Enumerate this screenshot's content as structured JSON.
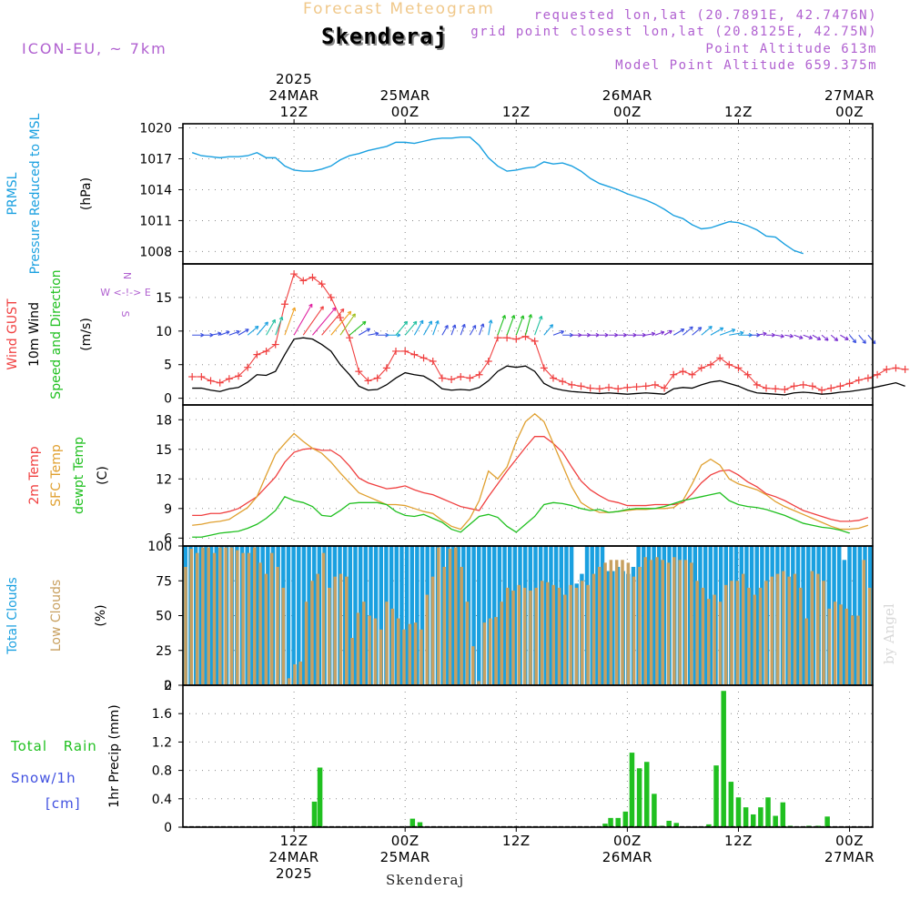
{
  "header": {
    "subtitle": "Forecast Meteogram",
    "station": "Skenderaj",
    "model": "ICON-EU, ~ 7km",
    "requested": "requested lon,lat (20.7891E, 42.7476N)",
    "closest": "grid point closest lon,lat (20.8125E, 42.75N)",
    "point_alt": "Point Altitude 613m",
    "model_alt": "Model Point Altitude 659.375m"
  },
  "footer": {
    "station": "Skenderaj",
    "credit": "by Angel"
  },
  "time_axis": {
    "top_labels": [
      {
        "t": 12,
        "lines": [
          "2025",
          "24MAR",
          "12Z"
        ]
      },
      {
        "t": 24,
        "lines": [
          "25MAR",
          "00Z"
        ]
      },
      {
        "t": 36,
        "lines": [
          "12Z"
        ]
      },
      {
        "t": 48,
        "lines": [
          "26MAR",
          "00Z"
        ]
      },
      {
        "t": 60,
        "lines": [
          "12Z"
        ]
      },
      {
        "t": 72,
        "lines": [
          "27MAR",
          "00Z"
        ]
      }
    ],
    "bottom_labels": [
      {
        "t": 12,
        "lines": [
          "12Z",
          "24MAR",
          "2025"
        ]
      },
      {
        "t": 24,
        "lines": [
          "00Z",
          "25MAR"
        ]
      },
      {
        "t": 36,
        "lines": [
          "12Z"
        ]
      },
      {
        "t": 48,
        "lines": [
          "00Z",
          "26MAR"
        ]
      },
      {
        "t": 60,
        "lines": [
          "12Z"
        ]
      },
      {
        "t": 72,
        "lines": [
          "00Z",
          "27MAR"
        ]
      }
    ]
  },
  "colors": {
    "pressure": "#1aa0e0",
    "gust": "#f04040",
    "wind": "#000000",
    "t2m": "#f04040",
    "sfc": "#e0a030",
    "dew": "#20c020",
    "total_clouds": "#1aa0e0",
    "low_clouds": "#c8a060",
    "rain": "#20c020",
    "snow": "#4050e0"
  },
  "chart_data": [
    {
      "type": "line",
      "ylabels": [
        "PRMSL",
        "Pressure Reduced to MSL",
        "(hPa)"
      ],
      "ylim": [
        1006.8,
        1020.4
      ],
      "yticks": [
        1008,
        1011,
        1014,
        1017,
        1020
      ],
      "series": [
        {
          "name": "PRMSL",
          "values": [
            1017.6,
            1017.3,
            1017.2,
            1017.1,
            1017.2,
            1017.2,
            1017.3,
            1017.6,
            1017.1,
            1017.1,
            1016.3,
            1015.9,
            1015.8,
            1015.8,
            1016.0,
            1016.3,
            1016.9,
            1017.3,
            1017.5,
            1017.8,
            1018.0,
            1018.2,
            1018.6,
            1018.6,
            1018.5,
            1018.7,
            1018.9,
            1019.0,
            1019.0,
            1019.1,
            1019.1,
            1018.3,
            1017.1,
            1016.3,
            1015.8,
            1015.9,
            1016.1,
            1016.2,
            1016.7,
            1016.5,
            1016.6,
            1016.3,
            1015.8,
            1015.1,
            1014.6,
            1014.3,
            1014.0,
            1013.6,
            1013.3,
            1013.0,
            1012.6,
            1012.1,
            1011.5,
            1011.2,
            1010.6,
            1010.2,
            1010.3,
            1010.6,
            1010.9,
            1010.8,
            1010.5,
            1010.1,
            1009.5,
            1009.4,
            1008.7,
            1008.1,
            1007.8
          ]
        }
      ],
      "t0": 1.0,
      "dt": 1.0
    },
    {
      "type": "line",
      "ylabels": [
        "Wind GUST",
        "10m Wind",
        "Speed and Direction",
        "(m/s)"
      ],
      "ylim": [
        -1,
        20
      ],
      "yticks": [
        0,
        5,
        10,
        15
      ],
      "compass": [
        "N",
        "W <-!-> E",
        "S"
      ],
      "series": [
        {
          "name": "Wind GUST",
          "values": [
            3.2,
            3.2,
            2.6,
            2.3,
            2.9,
            3.3,
            4.6,
            6.5,
            7.0,
            8.0,
            14.0,
            18.5,
            17.5,
            18.0,
            17.0,
            15.0,
            12.0,
            9.0,
            4.0,
            2.6,
            3.0,
            4.5,
            7.0,
            7.0,
            6.5,
            6.0,
            5.5,
            3.0,
            2.8,
            3.2,
            3.0,
            3.5,
            5.5,
            9.0,
            9.0,
            8.8,
            9.2,
            8.5,
            4.5,
            3.0,
            2.5,
            2.0,
            1.8,
            1.5,
            1.4,
            1.6,
            1.4,
            1.6,
            1.7,
            1.8,
            2.0,
            1.5,
            3.5,
            4.0,
            3.5,
            4.5,
            5.0,
            6.0,
            5.0,
            4.5,
            3.5,
            2.0,
            1.5,
            1.4,
            1.3,
            1.8,
            2.0,
            1.8,
            1.2,
            1.5,
            1.8,
            2.2,
            2.7,
            3.0,
            3.5,
            4.3,
            4.5,
            4.3
          ]
        },
        {
          "name": "10m Wind",
          "values": [
            1.5,
            1.5,
            1.2,
            1.0,
            1.4,
            1.6,
            2.4,
            3.5,
            3.4,
            4.0,
            6.5,
            8.8,
            9.0,
            8.8,
            8.0,
            7.0,
            5.0,
            3.5,
            1.8,
            1.2,
            1.3,
            2.0,
            3.0,
            3.8,
            3.5,
            3.3,
            2.5,
            1.4,
            1.2,
            1.3,
            1.2,
            1.6,
            2.6,
            4.0,
            4.8,
            4.6,
            4.8,
            4.0,
            2.2,
            1.5,
            1.2,
            1.0,
            0.9,
            0.8,
            0.7,
            0.8,
            0.7,
            0.6,
            0.7,
            0.8,
            0.7,
            0.6,
            1.4,
            1.6,
            1.5,
            2.0,
            2.4,
            2.6,
            2.2,
            1.8,
            1.2,
            0.8,
            0.7,
            0.6,
            0.5,
            0.8,
            0.9,
            0.8,
            0.6,
            0.7,
            0.9,
            1.0,
            1.2,
            1.4,
            1.7,
            2.0,
            2.3,
            1.8
          ]
        }
      ],
      "t0": 1.0,
      "dt": 1.0
    },
    {
      "type": "line",
      "ylabels": [
        "2m Temp",
        "SFC Temp",
        "dewpt Temp",
        "(C)"
      ],
      "ylim": [
        5.2,
        19.5
      ],
      "yticks": [
        6,
        9,
        12,
        15,
        18
      ],
      "series": [
        {
          "name": "2m Temp",
          "values": [
            8.3,
            8.3,
            8.5,
            8.5,
            8.7,
            9.0,
            9.6,
            10.2,
            11.2,
            12.2,
            13.7,
            14.7,
            15.0,
            15.1,
            14.9,
            14.9,
            14.3,
            13.3,
            12.1,
            11.6,
            11.3,
            11.0,
            11.1,
            11.3,
            10.9,
            10.6,
            10.4,
            10.0,
            9.6,
            9.2,
            9.0,
            8.8,
            10.2,
            11.5,
            12.8,
            14.0,
            15.2,
            16.3,
            16.3,
            15.6,
            14.7,
            13.2,
            11.8,
            10.9,
            10.3,
            9.8,
            9.6,
            9.3,
            9.3,
            9.3,
            9.4,
            9.4,
            9.4,
            9.6,
            10.5,
            11.6,
            12.4,
            12.8,
            12.9,
            12.4,
            11.7,
            11.2,
            10.5,
            10.2,
            9.8,
            9.3,
            8.8,
            8.5,
            8.2,
            7.9,
            7.7,
            7.7,
            7.8,
            8.1
          ]
        },
        {
          "name": "SFC Temp",
          "values": [
            7.3,
            7.4,
            7.6,
            7.7,
            7.9,
            8.5,
            9.1,
            10.2,
            12.4,
            14.5,
            15.6,
            16.6,
            15.8,
            15.1,
            14.6,
            13.7,
            12.6,
            11.6,
            10.6,
            10.2,
            9.8,
            9.4,
            9.4,
            9.3,
            9.0,
            8.7,
            8.5,
            7.8,
            7.2,
            6.9,
            8.0,
            9.8,
            12.8,
            12.0,
            13.2,
            15.8,
            17.8,
            18.6,
            17.8,
            15.6,
            13.4,
            11.2,
            9.6,
            9.0,
            8.6,
            8.6,
            8.7,
            8.8,
            8.9,
            8.9,
            9.0,
            9.0,
            9.1,
            9.8,
            11.5,
            13.4,
            14.0,
            13.4,
            12.0,
            11.5,
            11.2,
            10.9,
            10.4,
            9.7,
            9.2,
            8.8,
            8.4,
            8.0,
            7.6,
            7.2,
            6.9,
            6.9,
            7.0,
            7.3
          ]
        },
        {
          "name": "dewpt Temp",
          "values": [
            6.1,
            6.1,
            6.3,
            6.5,
            6.6,
            6.7,
            7.0,
            7.4,
            8.0,
            8.8,
            10.2,
            9.8,
            9.6,
            9.2,
            8.3,
            8.2,
            8.8,
            9.5,
            9.6,
            9.6,
            9.6,
            9.4,
            8.7,
            8.3,
            8.2,
            8.4,
            8.0,
            7.6,
            6.9,
            6.6,
            7.4,
            8.2,
            8.4,
            8.1,
            7.2,
            6.6,
            7.4,
            8.2,
            9.4,
            9.6,
            9.5,
            9.3,
            9.0,
            8.8,
            8.9,
            8.6,
            8.7,
            8.9,
            9.0,
            9.0,
            9.0,
            9.2,
            9.5,
            9.8,
            10.0,
            10.2,
            10.4,
            10.6,
            9.8,
            9.4,
            9.2,
            9.1,
            8.9,
            8.6,
            8.3,
            7.9,
            7.5,
            7.3,
            7.1,
            7.0,
            6.8,
            6.5
          ]
        }
      ],
      "t0": 1.0,
      "dt": 1.0
    },
    {
      "type": "bar",
      "ylabels": [
        "Total Clouds",
        "Low Clouds",
        "(%)"
      ],
      "ylim": [
        0,
        100
      ],
      "yticks": [
        0,
        25,
        50,
        75,
        100
      ],
      "series": [
        {
          "name": "Total Clouds",
          "values": [
            100,
            100,
            100,
            100,
            100,
            100,
            100,
            100,
            100,
            100,
            100,
            100,
            100,
            100,
            100,
            100,
            100,
            100,
            100,
            100,
            100,
            100,
            100,
            100,
            100,
            100,
            100,
            100,
            100,
            100,
            100,
            100,
            100,
            100,
            100,
            100,
            100,
            100,
            100,
            100,
            100,
            100,
            100,
            100,
            100,
            100,
            100,
            100,
            100,
            100,
            100,
            100,
            100,
            100,
            100,
            100,
            100,
            100,
            100,
            100,
            100,
            100,
            100,
            100,
            100,
            100,
            100,
            100,
            100,
            100,
            100,
            100,
            100,
            100,
            100,
            100,
            73,
            80,
            100,
            100,
            100,
            100,
            82,
            82,
            85,
            82,
            80,
            85,
            100,
            100,
            100,
            100,
            100,
            100,
            100,
            100,
            100,
            100,
            100,
            100,
            100,
            100,
            100,
            100,
            100,
            100,
            100,
            100,
            100,
            100,
            100,
            100,
            100,
            100,
            100,
            100,
            100,
            100,
            100,
            100,
            100,
            100,
            100,
            100,
            100,
            100,
            100,
            100,
            90,
            100,
            100,
            100,
            100,
            100
          ]
        },
        {
          "name": "Low Clouds",
          "values": [
            85,
            98,
            95,
            99,
            99,
            95,
            99,
            99,
            99,
            97,
            95,
            95,
            99,
            88,
            80,
            95,
            85,
            70,
            5,
            15,
            17,
            60,
            75,
            80,
            95,
            70,
            78,
            80,
            78,
            34,
            52,
            60,
            50,
            48,
            40,
            60,
            55,
            48,
            40,
            44,
            45,
            40,
            65,
            78,
            99,
            85,
            98,
            99,
            85,
            60,
            28,
            3,
            45,
            48,
            49,
            60,
            70,
            68,
            72,
            70,
            68,
            70,
            75,
            74,
            72,
            70,
            65,
            72,
            70,
            75,
            72,
            80,
            85,
            88,
            90,
            90,
            90,
            88,
            78,
            85,
            92,
            90,
            92,
            90,
            88,
            92,
            90,
            90,
            88,
            75,
            70,
            62,
            65,
            60,
            72,
            75,
            75,
            80,
            70,
            65,
            70,
            75,
            78,
            80,
            82,
            78,
            80,
            70,
            48,
            82,
            80,
            75,
            55,
            60,
            58,
            55,
            50,
            50,
            90,
            70
          ]
        }
      ],
      "t0": 0.0,
      "dt": 0.6
    },
    {
      "type": "bar",
      "ylabels": [
        "1hr Precip (mm)"
      ],
      "side_labels": [
        "Total Rain",
        "Snow/1h",
        "[cm]"
      ],
      "ylim": [
        0,
        2.0
      ],
      "yticks": [
        "0",
        "0.4",
        "0.8",
        "1.2",
        "1.6",
        "2"
      ],
      "series": [
        {
          "name": "Total Rain",
          "values": [
            {
              "t": 14.2,
              "v": 0.36
            },
            {
              "t": 14.8,
              "v": 0.84
            },
            {
              "t": 24.8,
              "v": 0.12
            },
            {
              "t": 25.6,
              "v": 0.07
            },
            {
              "t": 45.6,
              "v": 0.05
            },
            {
              "t": 46.2,
              "v": 0.13
            },
            {
              "t": 47.0,
              "v": 0.13
            },
            {
              "t": 47.8,
              "v": 0.22
            },
            {
              "t": 48.5,
              "v": 1.05
            },
            {
              "t": 49.3,
              "v": 0.83
            },
            {
              "t": 50.1,
              "v": 0.92
            },
            {
              "t": 50.9,
              "v": 0.47
            },
            {
              "t": 51.7,
              "v": 0.02
            },
            {
              "t": 52.5,
              "v": 0.09
            },
            {
              "t": 53.3,
              "v": 0.06
            },
            {
              "t": 56.8,
              "v": 0.04
            },
            {
              "t": 57.6,
              "v": 0.87
            },
            {
              "t": 58.4,
              "v": 1.92
            },
            {
              "t": 59.2,
              "v": 0.64
            },
            {
              "t": 60.0,
              "v": 0.42
            },
            {
              "t": 60.8,
              "v": 0.28
            },
            {
              "t": 61.6,
              "v": 0.18
            },
            {
              "t": 62.4,
              "v": 0.28
            },
            {
              "t": 63.2,
              "v": 0.42
            },
            {
              "t": 64.0,
              "v": 0.16
            },
            {
              "t": 64.8,
              "v": 0.35
            },
            {
              "t": 65.6,
              "v": 0.02
            },
            {
              "t": 67.6,
              "v": 0.02
            },
            {
              "t": 68.6,
              "v": 0.02
            },
            {
              "t": 69.6,
              "v": 0.15
            }
          ]
        }
      ],
      "t0": 0.0,
      "dt": 1.0
    }
  ],
  "wind_barbs": {
    "start": 1.0,
    "step": 1.0,
    "dirs_deg": [
      270,
      270,
      260,
      250,
      250,
      240,
      230,
      220,
      210,
      200,
      200,
      210,
      215,
      220,
      220,
      220,
      215,
      230,
      240,
      260,
      270,
      270,
      220,
      220,
      210,
      210,
      200,
      210,
      200,
      200,
      210,
      200,
      190,
      200,
      200,
      200,
      195,
      200,
      220,
      250,
      270,
      270,
      270,
      270,
      270,
      270,
      270,
      270,
      270,
      260,
      250,
      240,
      240,
      230,
      230,
      230,
      240,
      250,
      260,
      270,
      270,
      260,
      270,
      280,
      280,
      290,
      290,
      300,
      310,
      310,
      300,
      320,
      320,
      320
    ]
  }
}
